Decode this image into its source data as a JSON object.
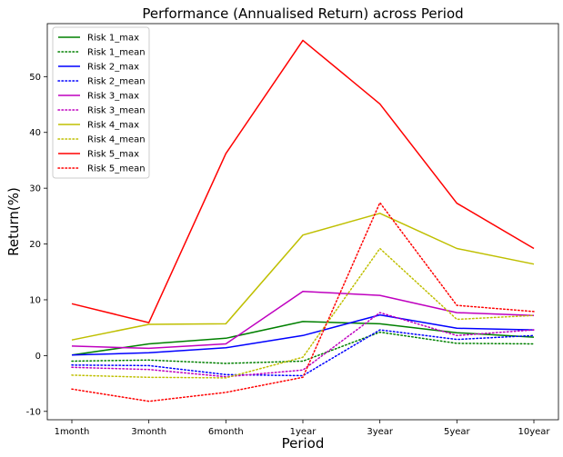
{
  "chart_data": {
    "type": "line",
    "title": "Performance (Annualised Return) across Period",
    "xlabel": "Period",
    "ylabel": "Return(%)",
    "categories": [
      "1month",
      "3month",
      "6month",
      "1year",
      "3year",
      "5year",
      "10year"
    ],
    "ylim": [
      -11.5,
      59.5
    ],
    "yticks": [
      -10,
      0,
      10,
      20,
      30,
      40,
      50
    ],
    "grid": false,
    "legend_position": "top-left",
    "series": [
      {
        "name": "Risk 1_max",
        "color": "#008000",
        "style": "solid",
        "values": [
          0.1,
          2.1,
          3.1,
          6.1,
          5.7,
          4.1,
          3.3
        ]
      },
      {
        "name": "Risk 1_mean",
        "color": "#008000",
        "style": "dotted",
        "values": [
          -1.0,
          -0.8,
          -1.4,
          -1.0,
          4.2,
          2.2,
          2.1
        ]
      },
      {
        "name": "Risk 2_max",
        "color": "#0000ff",
        "style": "solid",
        "values": [
          0.1,
          0.5,
          1.4,
          3.6,
          7.3,
          4.9,
          4.6
        ]
      },
      {
        "name": "Risk 2_mean",
        "color": "#0000ff",
        "style": "dotted",
        "values": [
          -1.7,
          -1.8,
          -3.4,
          -3.6,
          4.6,
          2.9,
          3.6
        ]
      },
      {
        "name": "Risk 3_max",
        "color": "#bf00bf",
        "style": "solid",
        "values": [
          1.7,
          1.3,
          2.1,
          11.5,
          10.8,
          7.7,
          7.2
        ]
      },
      {
        "name": "Risk 3_mean",
        "color": "#bf00bf",
        "style": "dotted",
        "values": [
          -2.1,
          -2.5,
          -3.8,
          -2.6,
          7.7,
          3.6,
          4.6
        ]
      },
      {
        "name": "Risk 4_max",
        "color": "#bfbf00",
        "style": "solid",
        "values": [
          2.8,
          5.6,
          5.7,
          21.6,
          25.5,
          19.2,
          16.4
        ]
      },
      {
        "name": "Risk 4_mean",
        "color": "#bfbf00",
        "style": "dotted",
        "values": [
          -3.5,
          -3.9,
          -4.0,
          -0.3,
          19.2,
          6.5,
          7.2
        ]
      },
      {
        "name": "Risk 5_max",
        "color": "#ff0000",
        "style": "solid",
        "values": [
          9.3,
          5.9,
          36.2,
          56.5,
          45.1,
          27.3,
          19.2
        ]
      },
      {
        "name": "Risk 5_mean",
        "color": "#ff0000",
        "style": "dotted",
        "values": [
          -6.0,
          -8.2,
          -6.6,
          -3.9,
          27.4,
          9.0,
          7.9
        ]
      }
    ]
  }
}
